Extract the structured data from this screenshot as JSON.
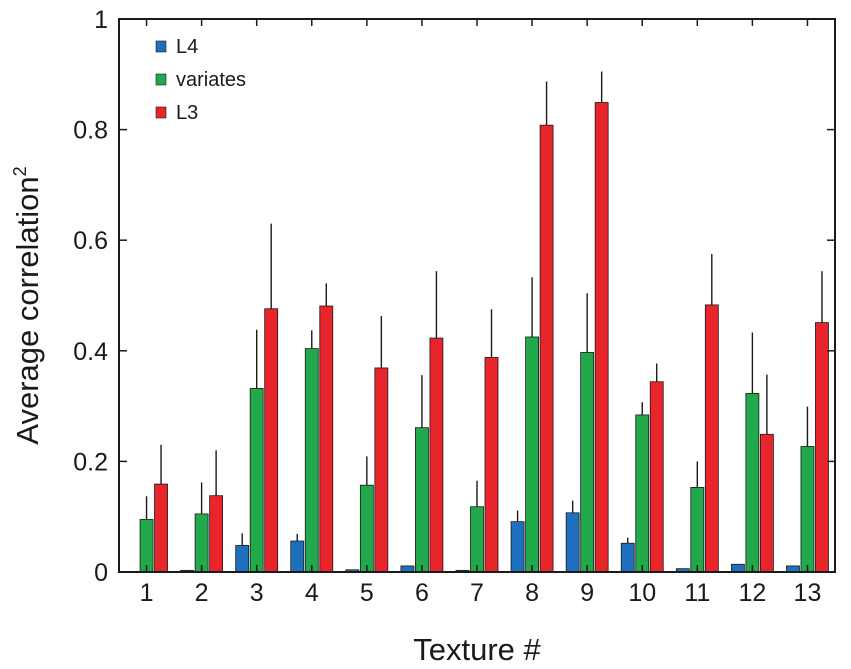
{
  "chart_data": {
    "type": "bar",
    "xlabel": "Texture #",
    "ylabel": "Average correlation",
    "ylabel_superscript": "2",
    "ylim": [
      0,
      1
    ],
    "yticks": [
      0,
      0.2,
      0.4,
      0.6,
      0.8,
      1
    ],
    "ytick_labels": [
      "0",
      "0.2",
      "0.4",
      "0.6",
      "0.8",
      "1"
    ],
    "categories": [
      "1",
      "2",
      "3",
      "4",
      "5",
      "6",
      "7",
      "8",
      "9",
      "10",
      "11",
      "12",
      "13"
    ],
    "grid": false,
    "legend_position": "top-left",
    "series": [
      {
        "name": "L4",
        "color": "#1f6fbf",
        "values": [
          0.001,
          0.003,
          0.048,
          0.056,
          0.004,
          0.011,
          0.003,
          0.091,
          0.107,
          0.052,
          0.006,
          0.014,
          0.011
        ],
        "error": [
          0.0,
          0.0,
          0.022,
          0.013,
          0.0,
          0.0,
          0.0,
          0.02,
          0.022,
          0.01,
          0.0,
          0.0,
          0.0
        ]
      },
      {
        "name": "variates",
        "color": "#22a94b",
        "values": [
          0.095,
          0.105,
          0.332,
          0.404,
          0.157,
          0.261,
          0.118,
          0.425,
          0.397,
          0.284,
          0.153,
          0.323,
          0.227
        ],
        "error": [
          0.042,
          0.057,
          0.106,
          0.033,
          0.052,
          0.095,
          0.047,
          0.108,
          0.107,
          0.023,
          0.047,
          0.11,
          0.072
        ]
      },
      {
        "name": "L3",
        "color": "#e8252b",
        "values": [
          0.159,
          0.138,
          0.476,
          0.481,
          0.369,
          0.423,
          0.388,
          0.808,
          0.849,
          0.344,
          0.483,
          0.249,
          0.451
        ],
        "error": [
          0.071,
          0.082,
          0.154,
          0.041,
          0.094,
          0.121,
          0.087,
          0.079,
          0.056,
          0.033,
          0.092,
          0.108,
          0.093
        ]
      }
    ]
  }
}
